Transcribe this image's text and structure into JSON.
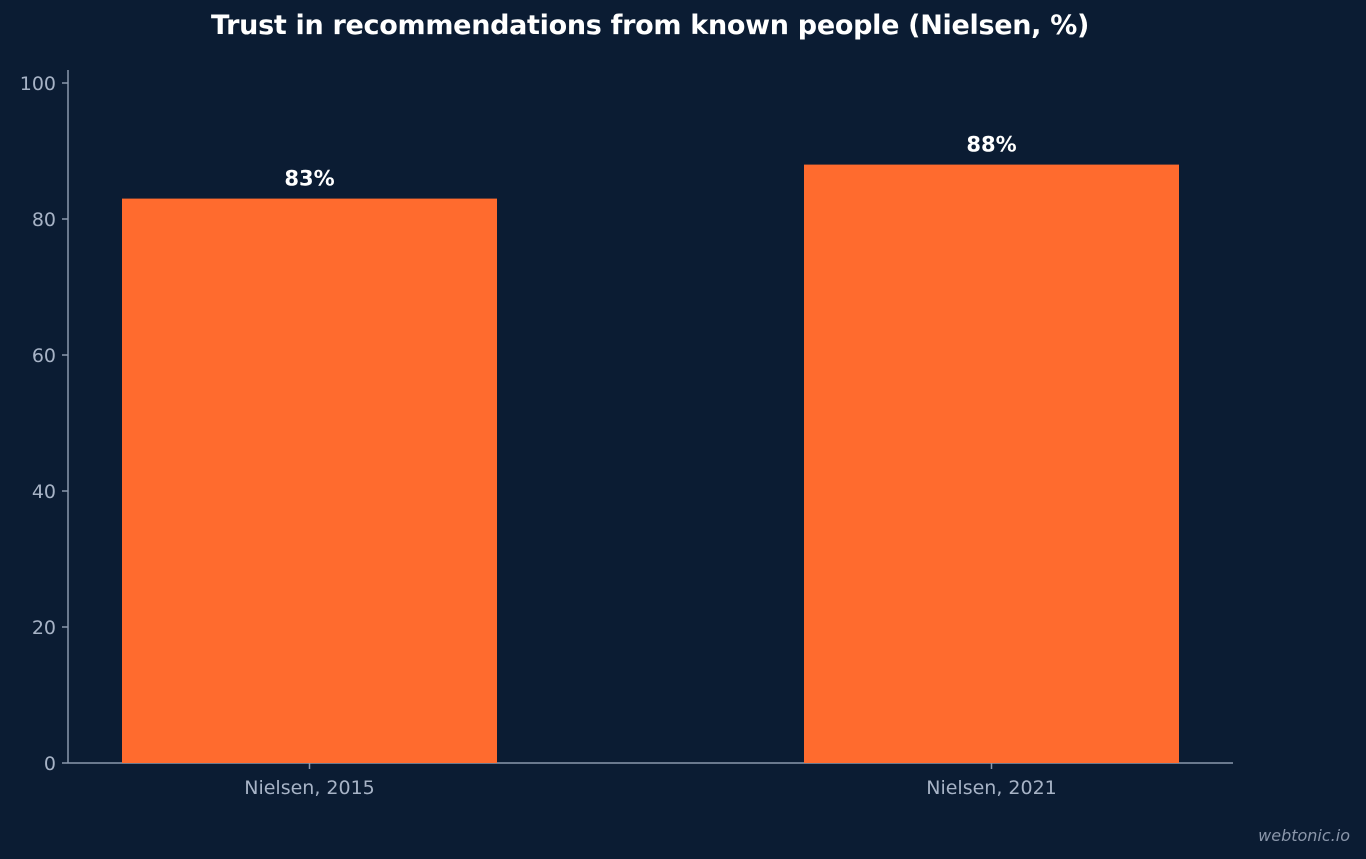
{
  "chart_data": {
    "type": "bar",
    "title": "Trust in recommendations from known people (Nielsen, %)",
    "categories": [
      "Nielsen, 2015",
      "Nielsen, 2021"
    ],
    "values": [
      83,
      88
    ],
    "data_labels": [
      "83%",
      "88%"
    ],
    "xlabel": "",
    "ylabel": "",
    "ylim": [
      0,
      100
    ],
    "yticks": [
      0,
      20,
      40,
      60,
      80,
      100
    ],
    "grid": false,
    "colors": {
      "background": "#0b1c33",
      "bar": "#ff6b2e",
      "axis": "#8a98ad",
      "tick_text": "#a7b3c6",
      "title": "#ffffff",
      "data_label": "#ffffff"
    }
  },
  "watermark": "webtonic.io"
}
